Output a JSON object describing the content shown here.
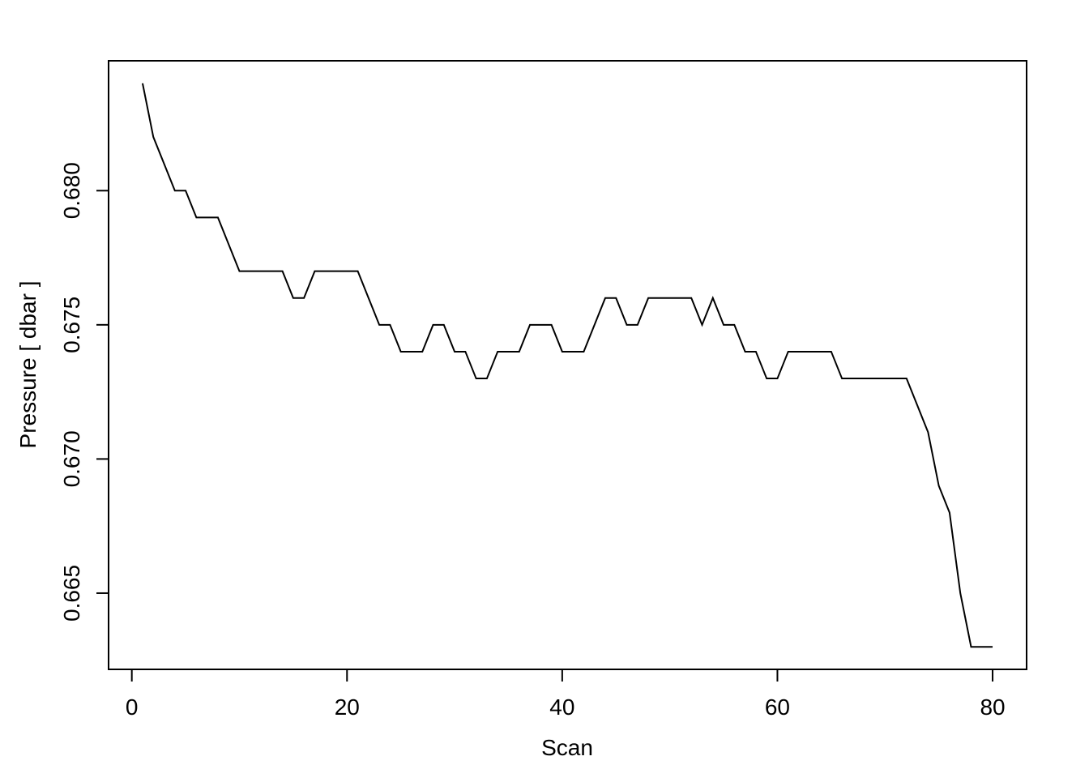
{
  "chart_data": {
    "type": "line",
    "x_label": "Scan",
    "y_label": "Pressure [ dbar ]",
    "x": [
      1,
      2,
      3,
      4,
      5,
      6,
      7,
      8,
      9,
      10,
      11,
      12,
      13,
      14,
      15,
      16,
      17,
      18,
      19,
      20,
      21,
      22,
      23,
      24,
      25,
      26,
      27,
      28,
      29,
      30,
      31,
      32,
      33,
      34,
      35,
      36,
      37,
      38,
      39,
      40,
      41,
      42,
      43,
      44,
      45,
      46,
      47,
      48,
      49,
      50,
      51,
      52,
      53,
      54,
      55,
      56,
      57,
      58,
      59,
      60,
      61,
      62,
      63,
      64,
      65,
      66,
      67,
      68,
      69,
      70,
      71,
      72,
      73,
      74,
      75,
      76,
      77,
      78,
      79,
      80
    ],
    "series": [
      {
        "color": "#000000",
        "values": [
          0.684,
          0.682,
          0.681,
          0.68,
          0.68,
          0.679,
          0.679,
          0.679,
          0.678,
          0.677,
          0.677,
          0.677,
          0.677,
          0.677,
          0.676,
          0.676,
          0.677,
          0.677,
          0.677,
          0.677,
          0.677,
          0.676,
          0.675,
          0.675,
          0.674,
          0.674,
          0.674,
          0.675,
          0.675,
          0.674,
          0.674,
          0.673,
          0.673,
          0.674,
          0.674,
          0.674,
          0.675,
          0.675,
          0.675,
          0.674,
          0.674,
          0.674,
          0.675,
          0.676,
          0.676,
          0.675,
          0.675,
          0.676,
          0.676,
          0.676,
          0.676,
          0.676,
          0.675,
          0.676,
          0.675,
          0.675,
          0.674,
          0.674,
          0.673,
          0.673,
          0.674,
          0.674,
          0.674,
          0.674,
          0.674,
          0.673,
          0.673,
          0.673,
          0.673,
          0.673,
          0.673,
          0.673,
          0.672,
          0.671,
          0.669,
          0.668,
          0.665,
          0.663,
          0.663,
          0.663
        ]
      }
    ],
    "xlim": [
      -2.16,
      83.16
    ],
    "ylim": [
      0.66216,
      0.68484
    ],
    "xticks": [
      0,
      20,
      40,
      60,
      80
    ],
    "yticks": [
      0.665,
      {
        "value": 0.67,
        "label": "0.670"
      },
      0.675,
      {
        "value": 0.68,
        "label": "0.680"
      }
    ]
  }
}
